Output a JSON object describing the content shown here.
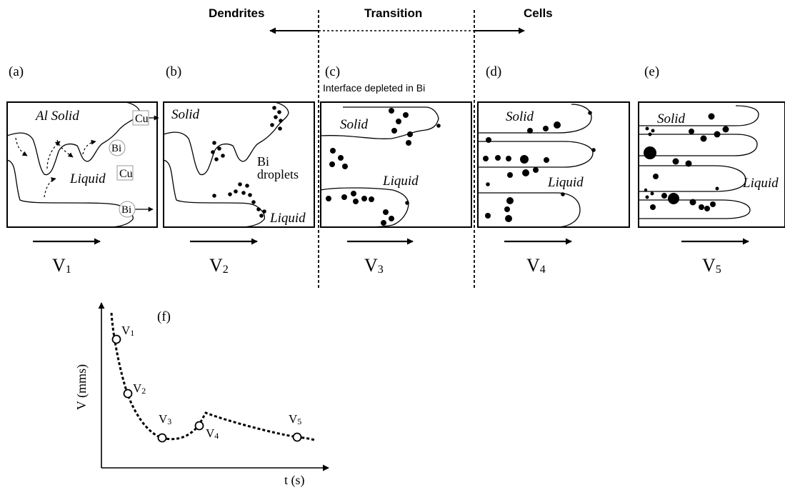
{
  "header": {
    "dendrites": "Dendrites",
    "transition": "Transition",
    "cells": "Cells"
  },
  "panels": {
    "a": {
      "label": "(a)",
      "solid": "Al Solid",
      "liquid": "Liquid",
      "cu_top": "Cu",
      "bi_top": "Bi",
      "cu_mid": "Cu",
      "bi_bottom": "Bi",
      "velocity": "V",
      "velocity_sub": "1"
    },
    "b": {
      "label": "(b)",
      "solid": "Solid",
      "droplets": "Bi droplets",
      "droplets_line1": "Bi",
      "droplets_line2": "droplets",
      "liquid": "Liquid",
      "velocity": "V",
      "velocity_sub": "2"
    },
    "c": {
      "label": "(c)",
      "note": "Interface depleted in Bi",
      "solid": "Solid",
      "liquid": "Liquid",
      "velocity": "V",
      "velocity_sub": "3"
    },
    "d": {
      "label": "(d)",
      "solid": "Solid",
      "liquid": "Liquid",
      "velocity": "V",
      "velocity_sub": "4"
    },
    "e": {
      "label": "(e)",
      "solid": "Solid",
      "liquid": "Liquid",
      "velocity": "V",
      "velocity_sub": "5"
    }
  },
  "graph": {
    "label": "(f)",
    "ylabel": "V (mms)",
    "xlabel": "t (s)",
    "points": [
      {
        "name": "V",
        "sub": "1"
      },
      {
        "name": "V",
        "sub": "2"
      },
      {
        "name": "V",
        "sub": "3"
      },
      {
        "name": "V",
        "sub": "4"
      },
      {
        "name": "V",
        "sub": "5"
      }
    ]
  }
}
